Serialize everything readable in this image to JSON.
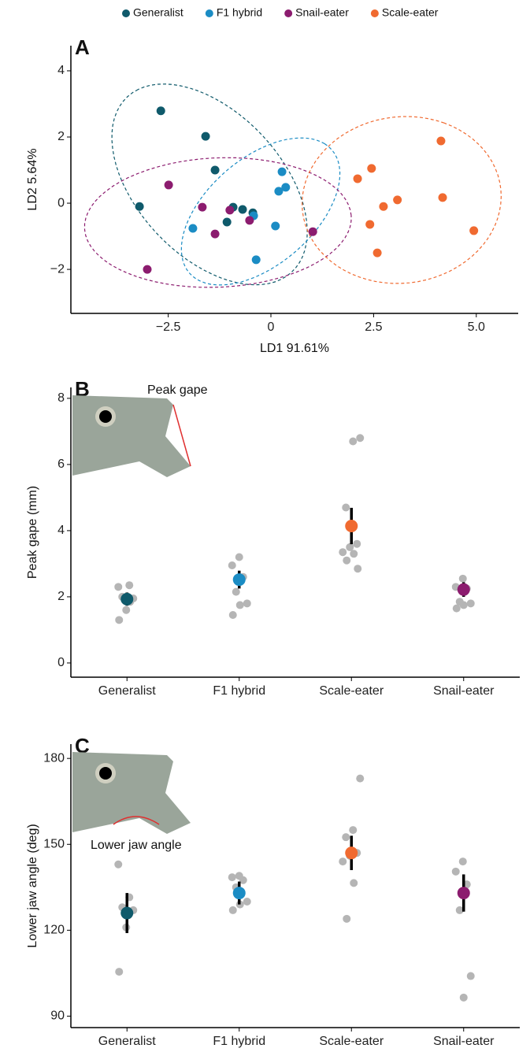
{
  "chart_data": [
    {
      "type": "scatter",
      "panel": "A",
      "x_label": "LD1 91.61%",
      "y_label": "LD2 5.64%",
      "xlim": [
        -4.87,
        6.02
      ],
      "ylim": [
        -3.33,
        4.76
      ],
      "xticks": [
        {
          "value": -2.5,
          "label": "−2.5"
        },
        0,
        2.5,
        {
          "value": 5,
          "label": "5.0"
        }
      ],
      "yticks": [
        {
          "value": -2,
          "label": "−2"
        },
        0,
        2,
        4
      ],
      "series": [
        {
          "name": "Generalist",
          "color": "#0f5a6b",
          "x": [
            -2.68,
            -1.59,
            -1.36,
            -3.2,
            -0.92,
            -1.07,
            -0.69,
            -0.44
          ],
          "y": [
            2.79,
            2.02,
            1.0,
            -0.1,
            -0.12,
            -0.57,
            -0.19,
            -0.29
          ]
        },
        {
          "name": "F1 hybrid",
          "color": "#1b8cc4",
          "x": [
            0.27,
            0.19,
            0.36,
            -1.9,
            -0.42,
            0.11,
            -0.36
          ],
          "y": [
            0.95,
            0.36,
            0.48,
            -0.76,
            -0.38,
            -0.69,
            -1.71
          ]
        },
        {
          "name": "Snail-eater",
          "color": "#8c1c6f",
          "x": [
            -2.49,
            -1.67,
            -1.0,
            -1.36,
            -0.52,
            1.02,
            -3.01
          ],
          "y": [
            0.55,
            -0.12,
            -0.21,
            -0.93,
            -0.52,
            -0.86,
            -2.0
          ]
        },
        {
          "name": "Scale-eater",
          "color": "#f06a30",
          "x": [
            4.14,
            2.45,
            2.11,
            3.08,
            2.74,
            4.18,
            2.41,
            2.59,
            4.94
          ],
          "y": [
            1.88,
            1.05,
            0.74,
            0.1,
            -0.1,
            0.17,
            -0.64,
            -1.5,
            -0.83
          ]
        }
      ]
    },
    {
      "type": "strip",
      "panel": "B",
      "annotation": "Peak gape",
      "y_label": "Peak gape (mm)",
      "ylim": [
        -0.43,
        8.33
      ],
      "yticks": [
        0,
        2,
        4,
        6,
        8
      ],
      "point_color": "#b5b5b5",
      "categories": [
        "Generalist",
        "F1 hybrid",
        "Scale-eater",
        "Snail-eater"
      ],
      "colors": [
        "#0f5a6b",
        "#1b8cc4",
        "#f06a30",
        "#8c1c6f"
      ],
      "means": [
        1.93,
        2.52,
        4.14,
        2.22
      ],
      "errors": [
        0.2,
        0.27,
        0.55,
        0.22
      ],
      "points": [
        [
          2.3,
          2.35,
          2.0,
          1.95,
          1.6,
          1.3,
          1.85
        ],
        [
          3.2,
          2.95,
          2.6,
          2.15,
          1.8,
          1.75,
          1.45
        ],
        [
          6.8,
          6.7,
          4.7,
          3.6,
          3.5,
          3.35,
          3.3,
          3.1,
          2.85
        ],
        [
          2.55,
          2.3,
          2.25,
          1.85,
          1.8,
          1.75,
          1.65
        ]
      ]
    },
    {
      "type": "strip",
      "panel": "C",
      "annotation": "Lower jaw angle",
      "y_label": "Lower jaw angle (deg)",
      "ylim": [
        86,
        185
      ],
      "yticks": [
        90,
        120,
        150,
        180
      ],
      "point_color": "#b5b5b5",
      "categories": [
        "Generalist",
        "F1 hybrid",
        "Scale-eater",
        "Snail-eater"
      ],
      "colors": [
        "#0f5a6b",
        "#1b8cc4",
        "#f06a30",
        "#8c1c6f"
      ],
      "means": [
        126,
        133,
        147,
        133
      ],
      "errors": [
        7,
        4,
        6,
        6.5
      ],
      "points": [
        [
          143,
          131.5,
          128,
          127,
          121,
          105.5
        ],
        [
          139,
          138.5,
          137.5,
          135,
          130,
          129,
          127
        ],
        [
          173,
          155,
          152.5,
          147,
          146,
          144,
          136.5,
          124
        ],
        [
          144,
          140.5,
          136,
          127,
          104,
          96.5
        ]
      ]
    }
  ]
}
